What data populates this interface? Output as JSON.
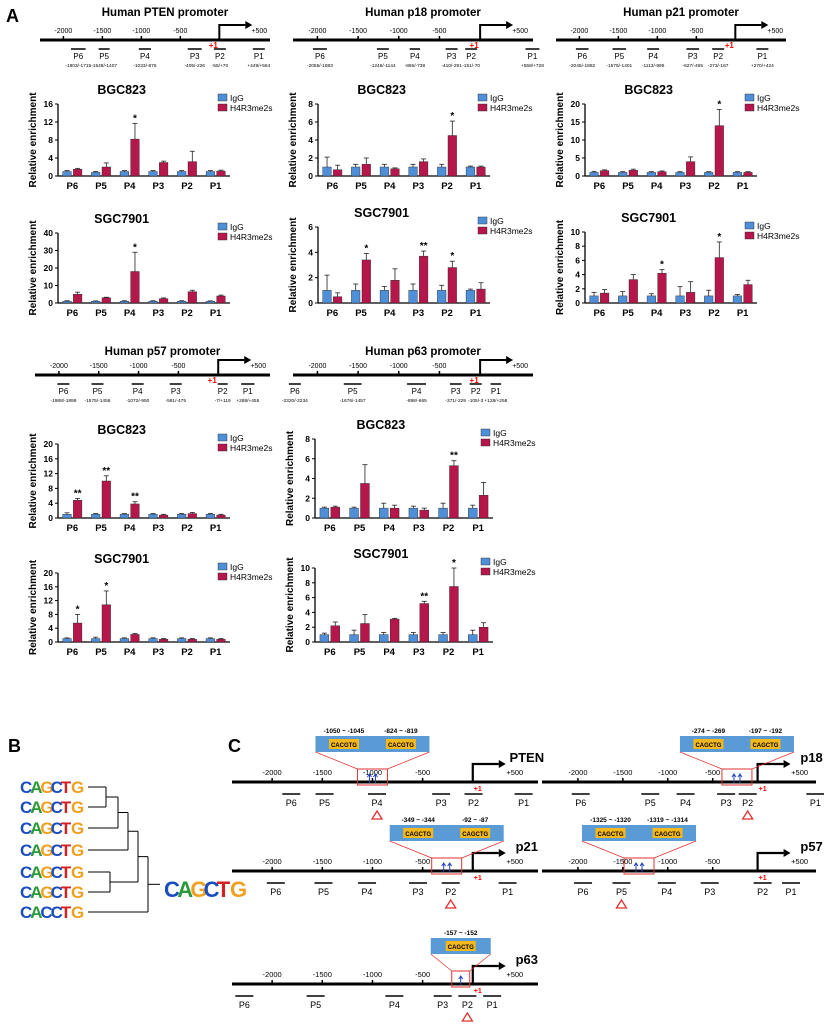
{
  "figure": {
    "panel_letters": {
      "a": "A",
      "b": "B",
      "c": "C"
    },
    "positions": [
      "P6",
      "P5",
      "P4",
      "P3",
      "P2",
      "P1"
    ],
    "ylabel": "Relative enrichment",
    "legend": {
      "igg": "IgG",
      "h4": "H4R3me2s"
    },
    "colors": {
      "igg": "#4f8fd8",
      "h4": "#b5174a",
      "tss": "#ff0000",
      "motif_box": "#5b9bd5",
      "motif_fill": "#f3b81b",
      "highlight": "#e03030"
    },
    "tss_label": "+1"
  },
  "promoters": [
    {
      "title": "Human PTEN promoter",
      "axis_labels": [
        "-2000",
        "-1500",
        "-1000",
        "-500",
        "+500"
      ],
      "regions": [
        {
          "name": "P6",
          "range": "-1903/-1715"
        },
        {
          "name": "P5",
          "range": "-1548/-1407"
        },
        {
          "name": "P4",
          "range": "-1033/-876"
        },
        {
          "name": "P3",
          "range": "-405/-226"
        },
        {
          "name": "P2",
          "range": "-55/+70"
        },
        {
          "name": "P1",
          "range": "+449/+564"
        }
      ]
    },
    {
      "title": "Human p18 promoter",
      "axis_labels": [
        "-2000",
        "-1500",
        "-1000",
        "-500",
        "+500"
      ],
      "regions": [
        {
          "name": "P6",
          "range": "-2055/-1883"
        },
        {
          "name": "P5",
          "range": "-1246/-1144"
        },
        {
          "name": "P4",
          "range": "-866/-738"
        },
        {
          "name": "P3",
          "range": "-410/-291"
        },
        {
          "name": "P2",
          "range": "-151/-70"
        },
        {
          "name": "P1",
          "range": "+558/+728"
        }
      ]
    },
    {
      "title": "Human p21 promoter",
      "axis_labels": [
        "-2000",
        "-1500",
        "-1000",
        "-500",
        "+500"
      ],
      "regions": [
        {
          "name": "P6",
          "range": "-2045/-1882"
        },
        {
          "name": "P5",
          "range": "-1575/-1401"
        },
        {
          "name": "P4",
          "range": "-1113/-995"
        },
        {
          "name": "P3",
          "range": "-627/-465"
        },
        {
          "name": "P2",
          "range": "-273/-167"
        },
        {
          "name": "P1",
          "range": "+270/+424"
        }
      ]
    },
    {
      "title": "Human p57 promoter",
      "axis_labels": [
        "-2000",
        "-1500",
        "-1000",
        "-500",
        "+500"
      ],
      "regions": [
        {
          "name": "P6",
          "range": "-1988/-1898"
        },
        {
          "name": "P5",
          "range": "-1575/-1456"
        },
        {
          "name": "P4",
          "range": "-1072/-950"
        },
        {
          "name": "P3",
          "range": "-591/-475"
        },
        {
          "name": "P2",
          "range": "-7/+119"
        },
        {
          "name": "P1",
          "range": "+288/+455"
        }
      ]
    },
    {
      "title": "Human p63 promoter",
      "axis_labels": [
        "-2000",
        "-1500",
        "-1000",
        "-500",
        "+500"
      ],
      "regions": [
        {
          "name": "P6",
          "range": "-2320/-2234"
        },
        {
          "name": "P5",
          "range": "-1676/-1457"
        },
        {
          "name": "P4",
          "range": "-898/-665"
        },
        {
          "name": "P3",
          "range": "-371/-229"
        },
        {
          "name": "P2",
          "range": "-105/-3"
        },
        {
          "name": "P1",
          "range": "+128/+258"
        }
      ]
    }
  ],
  "chart_data": [
    {
      "type": "bar",
      "title": "BGC823",
      "promoter": "PTEN",
      "categories": [
        "P6",
        "P5",
        "P4",
        "P3",
        "P2",
        "P1"
      ],
      "ylim": [
        0,
        16
      ],
      "yticks": [
        0,
        4,
        8,
        12,
        16
      ],
      "series": [
        {
          "name": "IgG",
          "values": [
            1,
            0.8,
            1,
            1,
            1,
            1
          ],
          "errors": [
            0.2,
            0.2,
            0.2,
            0.2,
            0.2,
            0.2
          ]
        },
        {
          "name": "H4R3me2s",
          "values": [
            1.5,
            2,
            8.2,
            3,
            3.2,
            1.1
          ],
          "errors": [
            0.2,
            0.9,
            3.5,
            0.3,
            2.3,
            0.2
          ]
        }
      ],
      "stars": [
        "",
        "",
        "*",
        "",
        "",
        ""
      ]
    },
    {
      "type": "bar",
      "title": "BGC823",
      "promoter": "p18",
      "categories": [
        "P6",
        "P5",
        "P4",
        "P3",
        "P2",
        "P1"
      ],
      "ylim": [
        0,
        8
      ],
      "yticks": [
        0,
        2,
        4,
        6,
        8
      ],
      "series": [
        {
          "name": "IgG",
          "values": [
            1,
            1,
            1,
            1,
            1,
            1
          ],
          "errors": [
            1.1,
            0.3,
            0.3,
            0.3,
            0.3,
            0.1
          ]
        },
        {
          "name": "H4R3me2s",
          "values": [
            0.7,
            1.3,
            0.8,
            1.6,
            4.5,
            1
          ]
        },
        "stars"
      ],
      "stars": [
        "",
        "",
        "",
        "",
        "*",
        ""
      ]
    },
    {
      "type": "bar",
      "title": "BGC823",
      "promoter": "p21",
      "categories": [
        "P6",
        "P5",
        "P4",
        "P3",
        "P2",
        "P1"
      ],
      "ylim": [
        0,
        20
      ],
      "yticks": [
        0,
        5,
        10,
        15,
        20
      ],
      "series": [
        {
          "name": "IgG",
          "values": [
            1,
            1,
            1,
            1,
            1,
            1
          ],
          "errors": [
            0.3,
            0.2,
            0.2,
            0.2,
            0.2,
            0.2
          ]
        },
        {
          "name": "H4R3me2s",
          "values": [
            1.5,
            1.6,
            1.2,
            4,
            14,
            1
          ]
        },
        "stars"
      ],
      "stars": [
        "",
        "",
        "",
        "",
        "*",
        ""
      ]
    },
    {
      "type": "bar",
      "title": "SGC7901",
      "promoter": "PTEN",
      "categories": [
        "P6",
        "P5",
        "P4",
        "P3",
        "P2",
        "P1"
      ],
      "ylim": [
        0,
        40
      ],
      "yticks": [
        0,
        10,
        20,
        30,
        40
      ],
      "series": [
        {
          "name": "IgG",
          "values": [
            1,
            1,
            1,
            1,
            1,
            1
          ],
          "errors": [
            0.3,
            0.2,
            0.3,
            0.3,
            0.3,
            0.2
          ]
        },
        {
          "name": "H4R3me2s",
          "values": [
            5,
            3,
            18,
            2.5,
            6.5,
            4
          ]
        },
        "stars"
      ],
      "stars": [
        "",
        "",
        "*",
        "",
        "",
        ""
      ]
    },
    {
      "type": "bar",
      "title": "SGC7901",
      "promoter": "p18",
      "categories": [
        "P6",
        "P5",
        "P4",
        "P3",
        "P2",
        "P1"
      ],
      "ylim": [
        0,
        6
      ],
      "yticks": [
        0,
        2,
        4,
        6
      ],
      "series": [
        {
          "name": "IgG",
          "values": [
            1,
            1,
            1,
            1,
            1,
            1
          ],
          "errors": [
            1.2,
            0.5,
            0.3,
            0.5,
            0.4,
            0.1
          ]
        },
        {
          "name": "H4R3me2s",
          "values": [
            0.5,
            3.4,
            1.8,
            3.7,
            2.8,
            1.1
          ]
        },
        "stars"
      ],
      "stars": [
        "",
        "*",
        "",
        "**",
        "*",
        ""
      ]
    },
    {
      "type": "bar",
      "title": "SGC7901",
      "promoter": "p21",
      "categories": [
        "P6",
        "P5",
        "P4",
        "P3",
        "P2",
        "P1"
      ],
      "ylim": [
        0,
        10
      ],
      "yticks": [
        0,
        2,
        4,
        6,
        8,
        10
      ],
      "series": [
        {
          "name": "IgG",
          "values": [
            1,
            1,
            1,
            1,
            1,
            1
          ],
          "errors": [
            0.5,
            0.6,
            0.3,
            1.3,
            0.8,
            0.2
          ]
        },
        {
          "name": "H4R3me2s",
          "values": [
            1.4,
            3.3,
            4.2,
            1.5,
            6.4,
            2.6
          ]
        },
        "stars"
      ],
      "stars": [
        "",
        "",
        "*",
        "",
        "*",
        ""
      ]
    },
    {
      "type": "bar",
      "title": "BGC823",
      "promoter": "p57",
      "categories": [
        "P6",
        "P5",
        "P4",
        "P3",
        "P2",
        "P1"
      ],
      "ylim": [
        0,
        20
      ],
      "yticks": [
        0,
        4,
        8,
        12,
        16,
        20
      ],
      "series": [
        {
          "name": "IgG",
          "values": [
            1,
            1,
            1,
            1,
            1,
            1
          ],
          "errors": [
            0.4,
            0.2,
            0.2,
            0.2,
            0.2,
            0.2
          ]
        },
        {
          "name": "H4R3me2s",
          "values": [
            4.8,
            10,
            3.8,
            0.8,
            1.2,
            0.8
          ]
        },
        "stars"
      ],
      "stars": [
        "**",
        "**",
        "**",
        "",
        "",
        ""
      ]
    },
    {
      "type": "bar",
      "title": "BGC823",
      "promoter": "p63",
      "categories": [
        "P6",
        "P5",
        "P4",
        "P3",
        "P2",
        "P1"
      ],
      "ylim": [
        0,
        8
      ],
      "yticks": [
        0,
        2,
        4,
        6,
        8
      ],
      "series": [
        {
          "name": "IgG",
          "values": [
            1,
            1,
            1,
            1,
            1,
            1
          ],
          "errors": [
            0.1,
            0.1,
            0.5,
            0.2,
            0.5,
            0.3
          ]
        },
        {
          "name": "H4R3me2s",
          "values": [
            1.1,
            3.5,
            1,
            0.8,
            5.3,
            2.3
          ]
        },
        "stars"
      ],
      "stars": [
        "",
        "",
        "",
        "",
        "**",
        ""
      ]
    },
    {
      "type": "bar",
      "title": "SGC7901",
      "promoter": "p57",
      "categories": [
        "P6",
        "P5",
        "P4",
        "P3",
        "P2",
        "P1"
      ],
      "ylim": [
        0,
        20
      ],
      "yticks": [
        0,
        4,
        8,
        12,
        16,
        20
      ],
      "series": [
        {
          "name": "IgG",
          "values": [
            1,
            1,
            1,
            1,
            1,
            1
          ],
          "errors": [
            0.2,
            0.4,
            0.2,
            0.2,
            0.2,
            0.2
          ]
        },
        {
          "name": "H4R3me2s",
          "values": [
            5.5,
            10.8,
            2.2,
            0.8,
            0.8,
            0.8
          ]
        },
        "stars"
      ],
      "stars": [
        "*",
        "*",
        "",
        "",
        "",
        ""
      ]
    },
    {
      "type": "bar",
      "title": "SGC7901",
      "promoter": "p63",
      "categories": [
        "P6",
        "P5",
        "P4",
        "P3",
        "P2",
        "P1"
      ],
      "ylim": [
        0,
        10
      ],
      "yticks": [
        0,
        2,
        4,
        6,
        8,
        10
      ],
      "series": [
        {
          "name": "IgG",
          "values": [
            1,
            1,
            1,
            1,
            1,
            1
          ],
          "errors": [
            0.2,
            0.6,
            0.3,
            0.3,
            0.3,
            0.6
          ]
        },
        {
          "name": "H4R3me2s",
          "values": [
            2.2,
            2.5,
            3.1,
            5.2,
            7.5,
            2
          ]
        },
        "stars"
      ],
      "stars": [
        "",
        "",
        "",
        "**",
        "*",
        ""
      ]
    }
  ],
  "motifs": {
    "logos": [
      "CAGCTG",
      "CAGCTG",
      "CAGCTG",
      "CAGCTG",
      "CAGCTG",
      "CAGCTG",
      "CACCTG"
    ],
    "consensus": "CAGCTG"
  },
  "maps": [
    {
      "gene": "PTEN",
      "site_labels": [
        "-1050 ~ -1045",
        "-824 ~ -819"
      ],
      "motifs": [
        "CACGTG",
        "CACGTG"
      ],
      "axis_labels": [
        "-2000",
        "-1500",
        "-1000",
        "-500",
        "+500"
      ],
      "regions": [
        "P6",
        "P5",
        "P4",
        "P3",
        "P2",
        "P1"
      ]
    },
    {
      "gene": "p18",
      "site_labels": [
        "-274 ~ -269",
        "-197 ~ -192"
      ],
      "motifs": [
        "CAGCTG",
        "CAGCTG"
      ],
      "axis_labels": [
        "-2000",
        "-1500",
        "-1000",
        "-500",
        "+500"
      ],
      "regions": [
        "P6",
        "P5",
        "P4",
        "P3",
        "P2",
        "P1"
      ]
    },
    {
      "gene": "p21",
      "site_labels": [
        "-349 ~ -344",
        "-92 ~ -87"
      ],
      "motifs": [
        "CAGCTG",
        "CAGCTG"
      ],
      "axis_labels": [
        "-2000",
        "-1500",
        "-1000",
        "-500",
        "+500"
      ],
      "regions": [
        "P6",
        "P5",
        "P4",
        "P3",
        "P2",
        "P1"
      ]
    },
    {
      "gene": "p57",
      "site_labels": [
        "-1325 ~ -1320",
        "-1319 ~ -1314"
      ],
      "motifs": [
        "CAGCTG",
        "CAGCTG"
      ],
      "axis_labels": [
        "-2000",
        "-1500",
        "-1000",
        "-500",
        "+500"
      ],
      "regions": [
        "P6",
        "P5",
        "P4",
        "P3",
        "P2",
        "P1"
      ]
    },
    {
      "gene": "p63",
      "site_labels": [
        "-157 ~ -152"
      ],
      "motifs": [
        "CAGCTG"
      ],
      "axis_labels": [
        "-2000",
        "-1500",
        "-1000",
        "-500",
        "+500"
      ],
      "regions": [
        "P6",
        "P5",
        "P4",
        "P3",
        "P2",
        "P1"
      ]
    }
  ]
}
